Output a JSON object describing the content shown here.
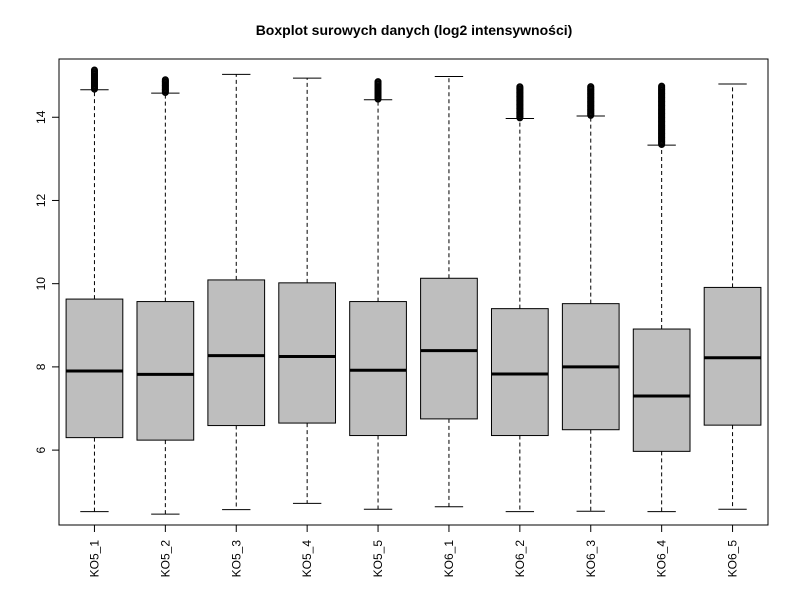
{
  "chart_data": {
    "type": "boxplot",
    "title": "Boxplot surowych danych (log2 intensywności)",
    "xlabel": "",
    "ylabel": "",
    "ylim": [
      4.2,
      15.4
    ],
    "yticks": [
      6,
      8,
      10,
      12,
      14
    ],
    "grid": false,
    "legend": "none",
    "box_fill": "#bebebe",
    "categories": [
      "KO5_1",
      "KO5_2",
      "KO5_3",
      "KO5_4",
      "KO5_5",
      "KO6_1",
      "KO6_2",
      "KO6_3",
      "KO6_4",
      "KO6_5"
    ],
    "boxes": [
      {
        "whisker_low": 4.52,
        "q1": 6.3,
        "median": 7.9,
        "q3": 9.63,
        "whisker_high": 14.66,
        "outliers_range": [
          14.66,
          15.15
        ]
      },
      {
        "whisker_low": 4.46,
        "q1": 6.24,
        "median": 7.82,
        "q3": 9.57,
        "whisker_high": 14.58,
        "outliers_range": [
          14.58,
          14.92
        ]
      },
      {
        "whisker_low": 4.57,
        "q1": 6.59,
        "median": 8.27,
        "q3": 10.09,
        "whisker_high": 15.03,
        "outliers_range": null
      },
      {
        "whisker_low": 4.72,
        "q1": 6.65,
        "median": 8.25,
        "q3": 10.02,
        "whisker_high": 14.94,
        "outliers_range": null
      },
      {
        "whisker_low": 4.58,
        "q1": 6.35,
        "median": 7.92,
        "q3": 9.57,
        "whisker_high": 14.42,
        "outliers_range": [
          14.42,
          14.86
        ]
      },
      {
        "whisker_low": 4.64,
        "q1": 6.75,
        "median": 8.39,
        "q3": 10.13,
        "whisker_high": 14.98,
        "outliers_range": null
      },
      {
        "whisker_low": 4.52,
        "q1": 6.35,
        "median": 7.83,
        "q3": 9.4,
        "whisker_high": 13.97,
        "outliers_range": [
          13.97,
          14.75
        ]
      },
      {
        "whisker_low": 4.53,
        "q1": 6.49,
        "median": 8.0,
        "q3": 9.52,
        "whisker_high": 14.03,
        "outliers_range": [
          14.03,
          14.75
        ]
      },
      {
        "whisker_low": 4.52,
        "q1": 5.97,
        "median": 7.3,
        "q3": 8.91,
        "whisker_high": 13.33,
        "outliers_range": [
          13.33,
          14.75
        ]
      },
      {
        "whisker_low": 4.58,
        "q1": 6.6,
        "median": 8.22,
        "q3": 9.91,
        "whisker_high": 14.8,
        "outliers_range": null
      }
    ]
  }
}
